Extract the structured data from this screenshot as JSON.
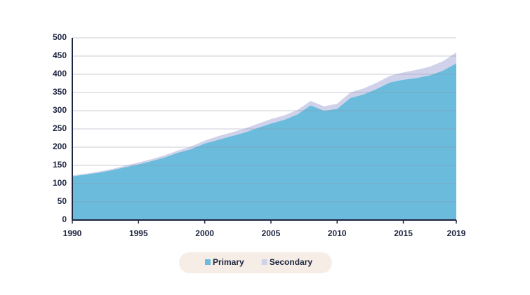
{
  "chart_data": {
    "type": "stacked_area",
    "x": [
      1990,
      1991,
      1992,
      1993,
      1994,
      1995,
      1996,
      1997,
      1998,
      1999,
      2000,
      2001,
      2002,
      2003,
      2004,
      2005,
      2006,
      2007,
      2008,
      2009,
      2010,
      2011,
      2012,
      2013,
      2014,
      2015,
      2016,
      2017,
      2018,
      2019
    ],
    "series": [
      {
        "name": "Primary",
        "color": "#6bbcdc",
        "values": [
          120,
          125,
          130,
          137,
          145,
          153,
          162,
          172,
          185,
          195,
          210,
          220,
          230,
          240,
          253,
          265,
          275,
          290,
          315,
          300,
          305,
          335,
          345,
          360,
          378,
          385,
          390,
          397,
          410,
          430
        ]
      },
      {
        "name": "Secondary",
        "color": "#cfd2ea",
        "values": [
          2,
          2,
          3,
          3,
          4,
          5,
          5,
          6,
          6,
          7,
          8,
          10,
          10,
          11,
          11,
          12,
          12,
          12,
          12,
          12,
          14,
          15,
          16,
          17,
          18,
          20,
          22,
          24,
          26,
          30
        ]
      }
    ],
    "xlim": [
      1990,
      2019
    ],
    "xticks": [
      1990,
      1995,
      2000,
      2005,
      2010,
      2015,
      2019
    ],
    "ylim": [
      0,
      500
    ],
    "yticks": [
      0,
      50,
      100,
      150,
      200,
      250,
      300,
      350,
      400,
      450,
      500
    ],
    "grid": true
  }
}
